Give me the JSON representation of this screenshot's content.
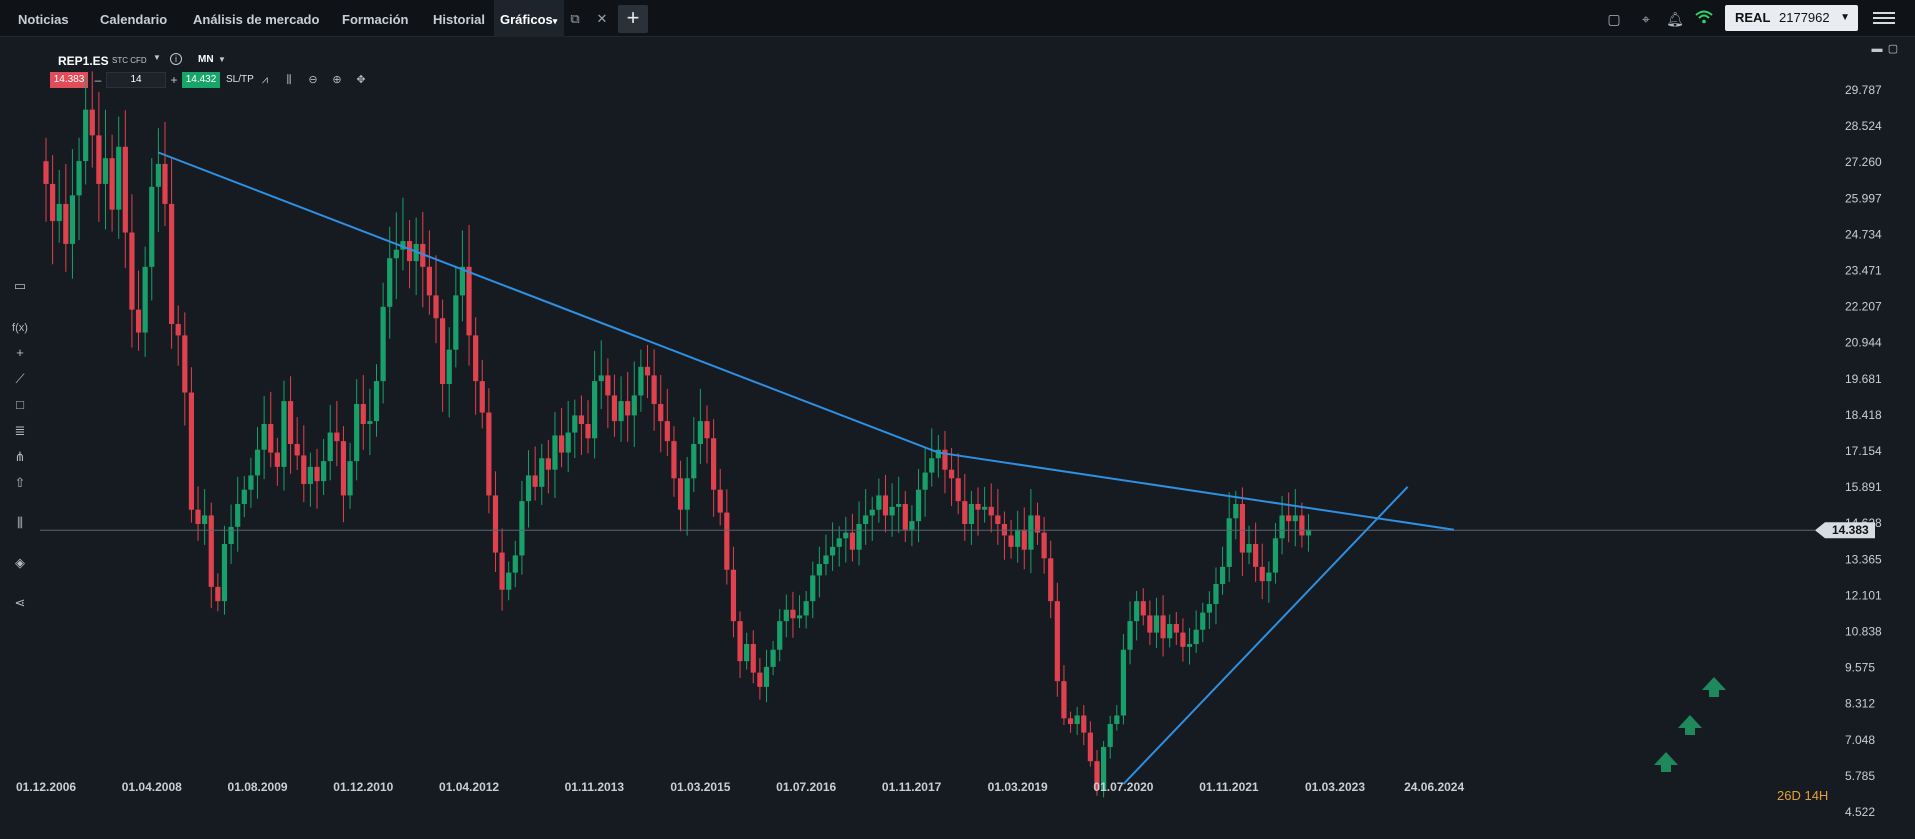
{
  "tabs": [
    {
      "label": "Noticias"
    },
    {
      "label": "Calendario"
    },
    {
      "label": "Análisis de mercado"
    },
    {
      "label": "Formación"
    },
    {
      "label": "Historial"
    },
    {
      "label": "Gráficos"
    }
  ],
  "account": {
    "mode": "REAL",
    "number": "2177962"
  },
  "symbol": {
    "name": "REP1.ES",
    "type": "STC CFD",
    "timeframe": "MN"
  },
  "trade": {
    "sell": "14.383",
    "qty": "14",
    "buy": "14.432",
    "sltp": "SL/TP",
    "minus": "–",
    "plus": "+"
  },
  "icons": {
    "left_toolbar": [
      "panel-icon",
      "function-icon",
      "crosshair-icon",
      "pencil-icon",
      "rectangle-icon",
      "fibonacci-icon",
      "pitchfork-icon",
      "shape-icon",
      "indicators-icon",
      "layers-icon",
      "share-icon"
    ],
    "header_tools": [
      "line-chart-icon",
      "candles-icon",
      "zoom-out-icon",
      "zoom-in-icon",
      "move-icon"
    ]
  },
  "timer": {
    "label": "26D 14H"
  },
  "colors": {
    "bull": "#19a06a",
    "bear": "#e0414e",
    "trendline": "#2f8fe0",
    "arrow": "#1e8a5c",
    "timer": "#e2a03a"
  },
  "chart_data": {
    "type": "candlestick",
    "yaxis_labels": [
      "29.787",
      "28.524",
      "27.260",
      "25.997",
      "24.734",
      "23.471",
      "22.207",
      "20.944",
      "19.681",
      "18.418",
      "17.154",
      "15.891",
      "14.628",
      "13.365",
      "12.101",
      "10.838",
      "9.575",
      "8.312",
      "7.048",
      "5.785",
      "4.522"
    ],
    "xaxis_labels": [
      "01.12.2006",
      "01.04.2008",
      "01.08.2009",
      "01.12.2010",
      "01.04.2012",
      "01.11.2013",
      "01.03.2015",
      "01.07.2016",
      "01.11.2017",
      "01.03.2019",
      "01.07.2020",
      "01.11.2021",
      "01.03.2023",
      "24.06.2024"
    ],
    "current_price": "14.383",
    "ylim": [
      4.522,
      29.787
    ],
    "trendlines": [
      {
        "name": "resistance",
        "points": [
          [
            "2008-05",
            27.6
          ],
          [
            "2018-03",
            17.1
          ],
          [
            "2024-09",
            14.4
          ]
        ]
      },
      {
        "name": "support",
        "points": [
          [
            "2020-07",
            5.5
          ],
          [
            "2024-02",
            15.9
          ]
        ]
      }
    ],
    "closes": [
      26.5,
      25.2,
      25.8,
      24.4,
      26.1,
      27.3,
      29.1,
      28.2,
      26.5,
      27.4,
      25.6,
      27.8,
      24.8,
      22.1,
      21.3,
      23.6,
      26.4,
      27.2,
      25.8,
      21.6,
      21.2,
      19.2,
      15.1,
      14.6,
      14.9,
      12.4,
      11.9,
      13.9,
      14.5,
      15.3,
      15.8,
      16.3,
      17.2,
      18.1,
      17.1,
      16.6,
      18.9,
      17.4,
      17.0,
      16.0,
      16.6,
      16.1,
      16.8,
      17.8,
      17.5,
      15.6,
      16.8,
      18.8,
      18.1,
      18.2,
      19.6,
      22.2,
      23.9,
      24.2,
      24.5,
      23.8,
      24.4,
      23.6,
      22.6,
      21.8,
      19.5,
      20.7,
      22.6,
      23.6,
      21.2,
      19.6,
      18.5,
      15.6,
      13.6,
      12.3,
      12.9,
      13.5,
      15.4,
      16.3,
      15.9,
      16.9,
      16.5,
      17.7,
      17.1,
      17.8,
      18.4,
      18.1,
      17.6,
      19.6,
      19.8,
      19.1,
      18.2,
      18.9,
      18.4,
      19.1,
      20.1,
      19.8,
      18.8,
      18.2,
      17.5,
      16.2,
      15.1,
      16.2,
      17.4,
      18.2,
      17.6,
      15.8,
      15.0,
      13.0,
      11.2,
      9.8,
      10.4,
      9.4,
      8.9,
      9.6,
      10.2,
      11.2,
      11.6,
      11.3,
      11.4,
      11.9,
      12.8,
      13.2,
      13.5,
      13.8,
      14.1,
      14.3,
      13.7,
      14.6,
      14.9,
      15.1,
      15.6,
      14.9,
      15.2,
      15.3,
      14.4,
      14.7,
      15.8,
      16.4,
      16.9,
      17.2,
      16.5,
      16.2,
      15.4,
      14.6,
      15.3,
      15.1,
      15.2,
      14.9,
      14.6,
      14.2,
      13.8,
      14.4,
      13.7,
      14.9,
      14.3,
      13.4,
      11.9,
      9.1,
      7.8,
      7.6,
      7.9,
      7.3,
      6.3,
      5.3,
      6.8,
      7.6,
      7.9,
      10.2,
      11.2,
      11.9,
      11.4,
      10.8,
      11.4,
      10.6,
      11.1,
      10.8,
      10.3,
      10.4,
      10.9,
      11.5,
      11.8,
      12.5,
      13.1,
      14.8,
      15.3,
      13.6,
      13.9,
      13.1,
      12.6,
      12.9,
      14.1,
      14.9,
      14.7,
      14.9,
      14.2,
      14.4
    ]
  }
}
